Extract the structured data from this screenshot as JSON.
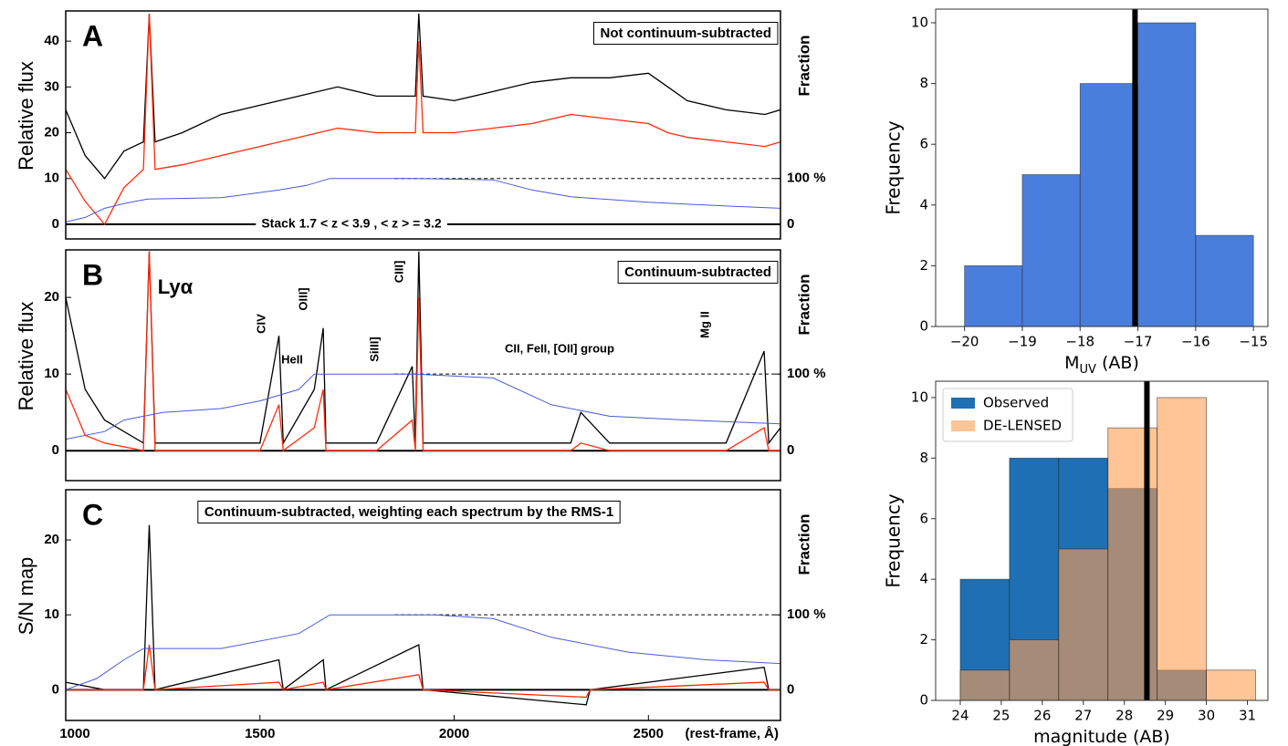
{
  "chart_data": [
    {
      "type": "line",
      "panel_label": "A",
      "box_text": "Not continuum-subtracted",
      "ylabel": "Relative flux",
      "y2label": "Fraction",
      "annotations": [
        "Stack 1.7 < z < 3.9  ,  < z > = 3.2"
      ],
      "x": [
        1000,
        1050,
        1100,
        1150,
        1200,
        1215,
        1230,
        1300,
        1400,
        1500,
        1600,
        1700,
        1800,
        1900,
        1909,
        1920,
        2000,
        2100,
        2200,
        2300,
        2400,
        2500,
        2550,
        2600,
        2700,
        2800,
        2840
      ],
      "series": [
        {
          "color": "#000000",
          "values": [
            25,
            15,
            10,
            16,
            18,
            46,
            18,
            20,
            24,
            26,
            28,
            30,
            28,
            28,
            46,
            28,
            27,
            29,
            31,
            32,
            32,
            33,
            30,
            27,
            25,
            24,
            25
          ]
        },
        {
          "color": "#ff2a0a",
          "values": [
            12,
            5,
            0,
            8,
            12,
            46,
            12,
            13,
            15,
            17,
            19,
            21,
            20,
            20,
            40,
            20,
            20,
            21,
            22,
            24,
            23,
            22,
            20,
            19,
            18,
            17,
            18
          ]
        },
        {
          "color": "#4a5ad8",
          "axis": "y2",
          "x": [
            1000,
            1050,
            1100,
            1150,
            1210,
            1400,
            1550,
            1620,
            1680,
            1900,
            2100,
            2200,
            2300,
            2500,
            2700,
            2840
          ],
          "values": [
            5,
            15,
            35,
            45,
            55,
            58,
            75,
            85,
            100,
            100,
            97,
            75,
            60,
            48,
            40,
            35
          ]
        }
      ],
      "xlim": [
        1000,
        2840
      ],
      "ylim": [
        -3.2,
        46.6
      ],
      "yticks": [
        0,
        10,
        20,
        30,
        40
      ],
      "y2lim": [
        -32,
        466
      ],
      "y2ticks": [
        0,
        {
          "value": 100,
          "label": "100 %"
        }
      ]
    },
    {
      "type": "line",
      "panel_label": "B",
      "box_text": "Continuum-subtracted",
      "ylabel": "Relative flux",
      "y2label": "Fraction",
      "annotations": [
        "Lyα",
        "CIV",
        "HeII",
        "OIII]",
        "SiIII]",
        "CIII]",
        "CII, FeII, [OII] group",
        "Mg II"
      ],
      "x": [
        1000,
        1050,
        1100,
        1200,
        1215,
        1230,
        1300,
        1400,
        1500,
        1549,
        1560,
        1640,
        1663,
        1670,
        1800,
        1892,
        1900,
        1909,
        1920,
        2000,
        2100,
        2200,
        2300,
        2326,
        2400,
        2500,
        2600,
        2700,
        2798,
        2810,
        2840
      ],
      "series": [
        {
          "color": "#000000",
          "values": [
            20,
            8,
            4,
            1,
            26,
            1,
            1,
            1,
            1,
            15,
            1,
            8,
            16,
            1,
            1,
            11,
            1,
            26,
            1,
            1,
            1,
            1,
            1,
            5,
            1,
            1,
            1,
            1,
            13,
            1,
            3
          ]
        },
        {
          "color": "#ff2a0a",
          "values": [
            8,
            2,
            1,
            0,
            26,
            0,
            0,
            0,
            0,
            6,
            0,
            3,
            8,
            0,
            0,
            4,
            0,
            20,
            0,
            0,
            0,
            0,
            0,
            1,
            0,
            0,
            0,
            0,
            3,
            0,
            0
          ]
        },
        {
          "color": "#4a5ad8",
          "axis": "y2",
          "x": [
            1000,
            1100,
            1150,
            1250,
            1400,
            1500,
            1600,
            1640,
            1900,
            2100,
            2250,
            2400,
            2600,
            2840
          ],
          "values": [
            15,
            25,
            40,
            50,
            55,
            65,
            80,
            100,
            100,
            95,
            60,
            45,
            40,
            35
          ]
        }
      ],
      "xlim": [
        1000,
        2840
      ],
      "ylim": [
        -3.9,
        26.2
      ],
      "yticks": [
        0,
        10,
        20
      ],
      "y2lim": [
        -39,
        262
      ],
      "y2ticks": [
        0,
        {
          "value": 100,
          "label": "100 %"
        }
      ]
    },
    {
      "type": "line",
      "panel_label": "C",
      "box_text": "Continuum-subtracted, weighting each spectrum by the RMS-1",
      "ylabel": "S/N map",
      "y2label": "Fraction",
      "xlabel": "(rest-frame, Å)",
      "x": [
        1000,
        1100,
        1200,
        1215,
        1230,
        1549,
        1560,
        1663,
        1670,
        1909,
        1920,
        2340,
        2350,
        2798,
        2810,
        2840
      ],
      "series": [
        {
          "color": "#000000",
          "values": [
            1,
            0,
            0,
            22,
            0,
            4,
            0,
            4,
            0,
            6,
            0,
            -2,
            0,
            3,
            0,
            0
          ]
        },
        {
          "color": "#ff2a0a",
          "values": [
            0,
            0,
            0,
            6,
            0,
            1,
            0,
            1,
            0,
            2,
            0,
            -1,
            0,
            1,
            0,
            0
          ]
        },
        {
          "color": "#4a5ad8",
          "axis": "y2",
          "x": [
            1000,
            1080,
            1150,
            1200,
            1400,
            1600,
            1680,
            1950,
            2100,
            2250,
            2450,
            2650,
            2840
          ],
          "values": [
            0,
            15,
            40,
            55,
            55,
            75,
            100,
            100,
            95,
            70,
            50,
            40,
            35
          ]
        }
      ],
      "xlim": [
        1000,
        2840
      ],
      "xticks": [
        1000,
        1500,
        2000,
        2500
      ],
      "ylim": [
        -4.1,
        26.7
      ],
      "yticks": [
        0,
        10,
        20
      ],
      "y2lim": [
        -41,
        267
      ],
      "y2ticks": [
        0,
        {
          "value": 100,
          "label": "100 %"
        }
      ]
    },
    {
      "type": "histogram",
      "xlabel": [
        "M",
        "UV",
        " (AB)"
      ],
      "ylabel": "Frequency",
      "bins": [
        -20,
        -19,
        -18,
        -17,
        -16,
        -15
      ],
      "values": [
        2,
        5,
        8,
        10,
        3
      ],
      "color": "#4a7edc",
      "marker_x": -17.05,
      "xlim": [
        -20.5,
        -14.75
      ],
      "xticks": [
        {
          "value": -20,
          "label": "−20"
        },
        {
          "value": -19,
          "label": "−19"
        },
        {
          "value": -18,
          "label": "−18"
        },
        {
          "value": -17,
          "label": "−17"
        },
        {
          "value": -16,
          "label": "−16"
        },
        {
          "value": -15,
          "label": "−15"
        }
      ],
      "ylim": [
        0,
        10.45
      ],
      "yticks": [
        0,
        2,
        4,
        6,
        8,
        10
      ]
    },
    {
      "type": "histogram",
      "xlabel": [
        "magnitude (AB)"
      ],
      "ylabel": "Frequency",
      "legend": "upper left",
      "bins": [
        24,
        25.2,
        26.4,
        27.6,
        28.8,
        30,
        31.2
      ],
      "series": [
        {
          "name": "Observed",
          "color": "#1f6fb4",
          "values": [
            4,
            8,
            8,
            7,
            1,
            0
          ]
        },
        {
          "name": "DE-LENSED",
          "color": "#ff9f50",
          "values": [
            1,
            2,
            5,
            9,
            10,
            1
          ]
        }
      ],
      "marker_x": 28.55,
      "xlim": [
        23.4,
        31.5
      ],
      "xticks": [
        24,
        25,
        26,
        27,
        28,
        29,
        30,
        31
      ],
      "ylim": [
        0,
        10.54
      ],
      "yticks": [
        0,
        2,
        4,
        6,
        8,
        10
      ]
    }
  ]
}
